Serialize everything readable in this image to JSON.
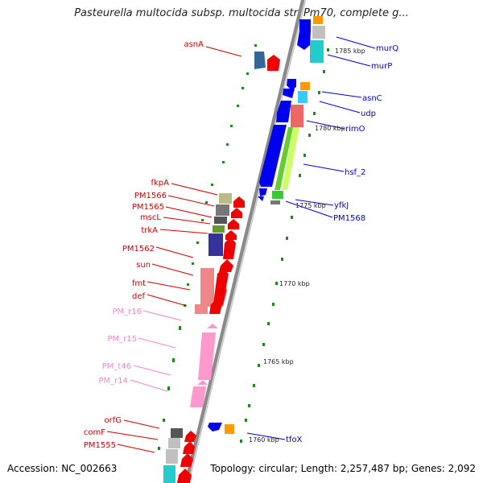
{
  "title": "Pasteurella multocida subsp. multocida str. Pm70, complete g...",
  "footer": {
    "accession": "Accession: NC_002663",
    "topology": "Topology: circular; Length: 2,257,487 bp; Genes: 2,092"
  },
  "kbp_ticks": [
    "1785 kbp",
    "1780 kbp",
    "1775 kbp",
    "1770 kbp",
    "1765 kbp",
    "1760 kbp"
  ],
  "right_genes": [
    "murQ",
    "murP",
    "asnC",
    "udp",
    "rimO",
    "hsf_2",
    "yfkJ",
    "PM1568",
    "tfoX"
  ],
  "left_genes": [
    "asnA",
    "fkpA",
    "PM1566",
    "PM1565",
    "mscL",
    "trkA",
    "PM1562",
    "sun",
    "fmt",
    "def",
    "orfG",
    "comF",
    "PM1555"
  ],
  "left_rna": [
    "PM_r16",
    "PM_r15",
    "PM_t46",
    "PM_r14"
  ],
  "colors": {
    "red_label": "#cc0000",
    "blue_label": "#0000cc",
    "pink_label": "#ee88cc",
    "green_dash": "#1a8a1a",
    "axis": "#888888"
  }
}
